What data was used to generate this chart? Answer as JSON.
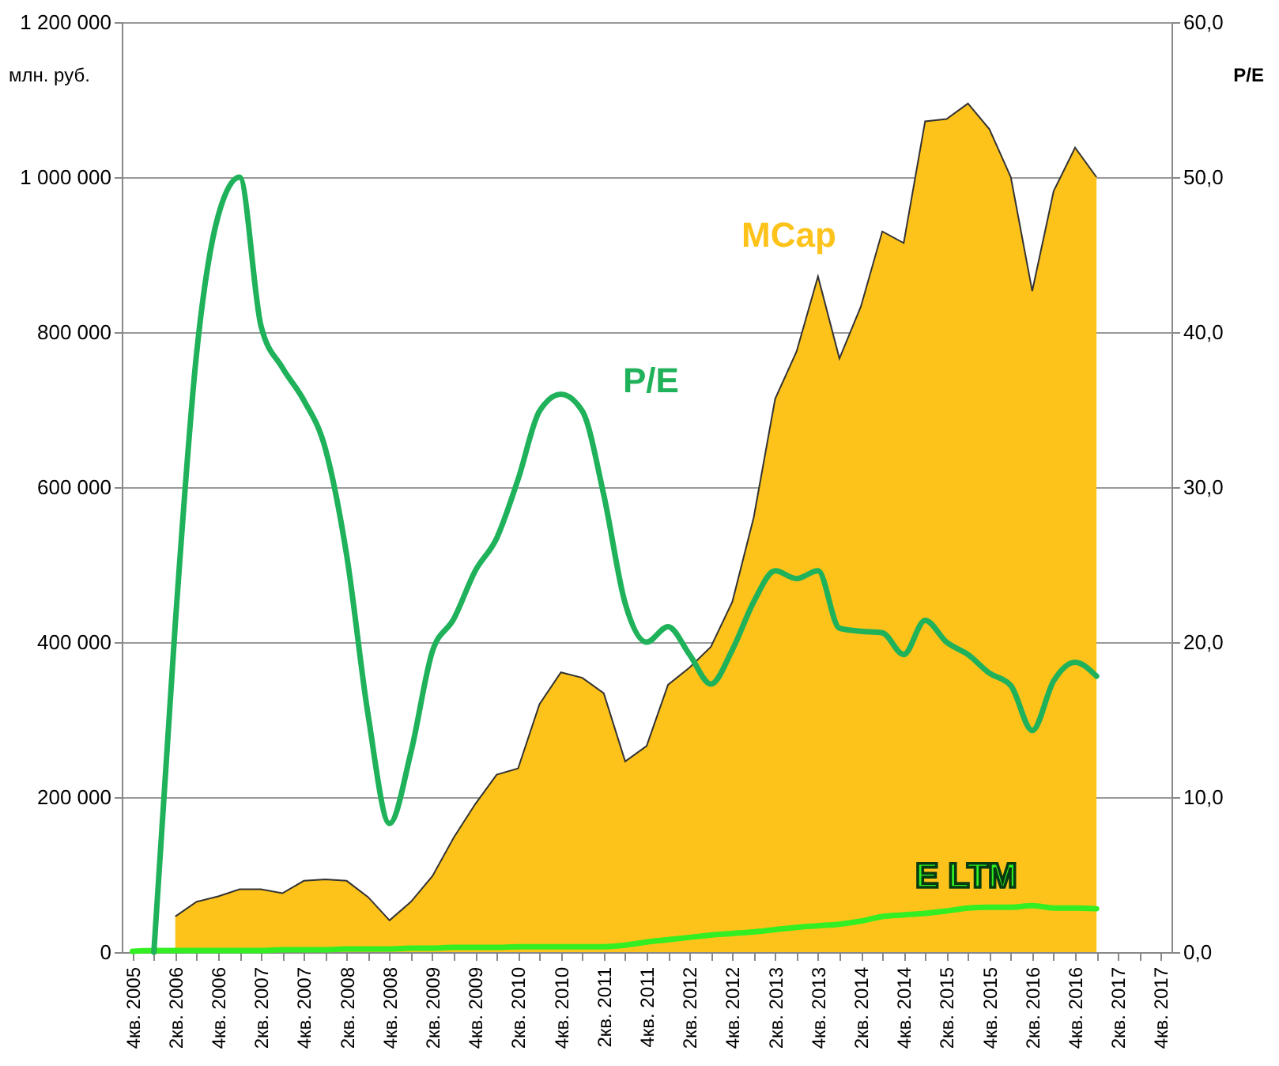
{
  "chart_data": {
    "type": "area",
    "ylabel": "млн. руб.",
    "y2label": "P/E",
    "categories": [
      "4кв. 2005",
      null,
      "2кв. 2006",
      null,
      "4кв. 2006",
      null,
      "2кв. 2007",
      null,
      "4кв. 2007",
      null,
      "2кв. 2008",
      null,
      "4кв. 2008",
      null,
      "2кв. 2009",
      null,
      "4кв. 2009",
      null,
      "2кв. 2010",
      null,
      "4кв. 2010",
      null,
      "2кв. 2011",
      null,
      "4кв. 2011",
      null,
      "2кв. 2012",
      null,
      "4кв. 2012",
      null,
      "2кв. 2013",
      null,
      "4кв. 2013",
      null,
      "2кв. 2014",
      null,
      "4кв. 2014",
      null,
      "2кв. 2015",
      null,
      "4кв. 2015",
      null,
      "2кв. 2016",
      null,
      "4кв. 2016",
      null,
      "2кв. 2017",
      null,
      "4кв. 2017"
    ],
    "series": [
      {
        "name": "MCap",
        "color": "#fdc31b",
        "values": [
          null,
          null,
          46000,
          65000,
          72000,
          81000,
          81000,
          76000,
          92000,
          94000,
          92000,
          71000,
          41000,
          65000,
          98000,
          148000,
          191000,
          229000,
          237000,
          320000,
          361000,
          354000,
          334000,
          246000,
          266000,
          345000,
          367000,
          394000,
          452000,
          561000,
          714000,
          775000,
          872000,
          766000,
          833000,
          930000,
          915000,
          1072000,
          1075000,
          1095000,
          1062000,
          1000000,
          853000,
          982000,
          1038000,
          1000000,
          null,
          null,
          null
        ]
      },
      {
        "name": "E LTM",
        "type": "line",
        "color": "#33ee22",
        "values": [
          1000,
          2000,
          2000,
          2000,
          2000,
          2000,
          2000,
          3000,
          3000,
          3000,
          4000,
          4000,
          4000,
          5000,
          5000,
          6000,
          6000,
          6000,
          7000,
          7000,
          7000,
          7000,
          7000,
          9000,
          13000,
          16000,
          19000,
          22000,
          24000,
          26000,
          29000,
          32000,
          34000,
          36000,
          40000,
          46000,
          48000,
          50000,
          53000,
          57000,
          58000,
          58000,
          60000,
          57000,
          57000,
          56000,
          null,
          null,
          null
        ]
      },
      {
        "name": "P/E",
        "type": "line",
        "axis": "y2",
        "color": "#1fb25a",
        "values": [
          null,
          0,
          21.2,
          38.7,
          47.5,
          50.0,
          40.4,
          37.7,
          35.6,
          32.5,
          25.6,
          15.3,
          8.3,
          12.9,
          19.4,
          21.5,
          24.6,
          26.7,
          30.5,
          34.9,
          36.0,
          34.9,
          29.5,
          22.5,
          20.0,
          21.0,
          19.2,
          17.3,
          19.5,
          22.6,
          24.6,
          24.1,
          24.6,
          20.9,
          20.7,
          20.6,
          19.2,
          21.4,
          20.0,
          19.2,
          18.0,
          17.2,
          14.3,
          17.5,
          18.7,
          17.8,
          null,
          null,
          null
        ]
      }
    ],
    "ylim": [
      0,
      1200000
    ],
    "yticks": [
      0,
      {
        "value": 200000,
        "label": "200 000"
      },
      {
        "value": 400000,
        "label": "400 000"
      },
      {
        "value": 600000,
        "label": "600 000"
      },
      {
        "value": 800000,
        "label": "800 000"
      },
      {
        "value": 1000000,
        "label": "1 000 000"
      },
      {
        "value": 1200000,
        "label": "1 200 000"
      }
    ],
    "y2lim": [
      0,
      60
    ],
    "y2ticks": [
      {
        "value": 0,
        "label": "0,0"
      },
      {
        "value": 10,
        "label": "10,0"
      },
      {
        "value": 20,
        "label": "20,0"
      },
      {
        "value": 30,
        "label": "30,0"
      },
      {
        "value": 40,
        "label": "40,0"
      },
      {
        "value": 50,
        "label": "50,0"
      },
      {
        "value": 60,
        "label": "60,0"
      }
    ],
    "grid": "y",
    "marker": "none",
    "line_style": "solid"
  }
}
